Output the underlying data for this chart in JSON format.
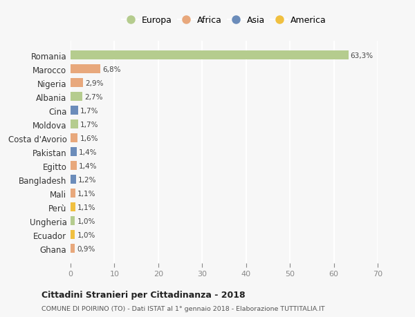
{
  "countries": [
    "Romania",
    "Marocco",
    "Nigeria",
    "Albania",
    "Cina",
    "Moldova",
    "Costa d'Avorio",
    "Pakistan",
    "Egitto",
    "Bangladesh",
    "Mali",
    "Perù",
    "Ungheria",
    "Ecuador",
    "Ghana"
  ],
  "values": [
    63.3,
    6.8,
    2.9,
    2.7,
    1.7,
    1.7,
    1.6,
    1.4,
    1.4,
    1.2,
    1.1,
    1.1,
    1.0,
    1.0,
    0.9
  ],
  "labels": [
    "63,3%",
    "6,8%",
    "2,9%",
    "2,7%",
    "1,7%",
    "1,7%",
    "1,6%",
    "1,4%",
    "1,4%",
    "1,2%",
    "1,1%",
    "1,1%",
    "1,0%",
    "1,0%",
    "0,9%"
  ],
  "continents": [
    "Europa",
    "Africa",
    "Africa",
    "Europa",
    "Asia",
    "Europa",
    "Africa",
    "Asia",
    "Africa",
    "Asia",
    "Africa",
    "America",
    "Europa",
    "America",
    "Africa"
  ],
  "colors": {
    "Europa": "#b5cc8e",
    "Africa": "#e8a87c",
    "Asia": "#6b8cba",
    "America": "#f0c040"
  },
  "legend_order": [
    "Europa",
    "Africa",
    "Asia",
    "America"
  ],
  "xlim": [
    0,
    70
  ],
  "xticks": [
    0,
    10,
    20,
    30,
    40,
    50,
    60,
    70
  ],
  "title": "Cittadini Stranieri per Cittadinanza - 2018",
  "subtitle": "COMUNE DI POIRINO (TO) - Dati ISTAT al 1° gennaio 2018 - Elaborazione TUTTITALIA.IT",
  "bg_color": "#f7f7f7",
  "grid_color": "#ffffff",
  "bar_height": 0.65
}
